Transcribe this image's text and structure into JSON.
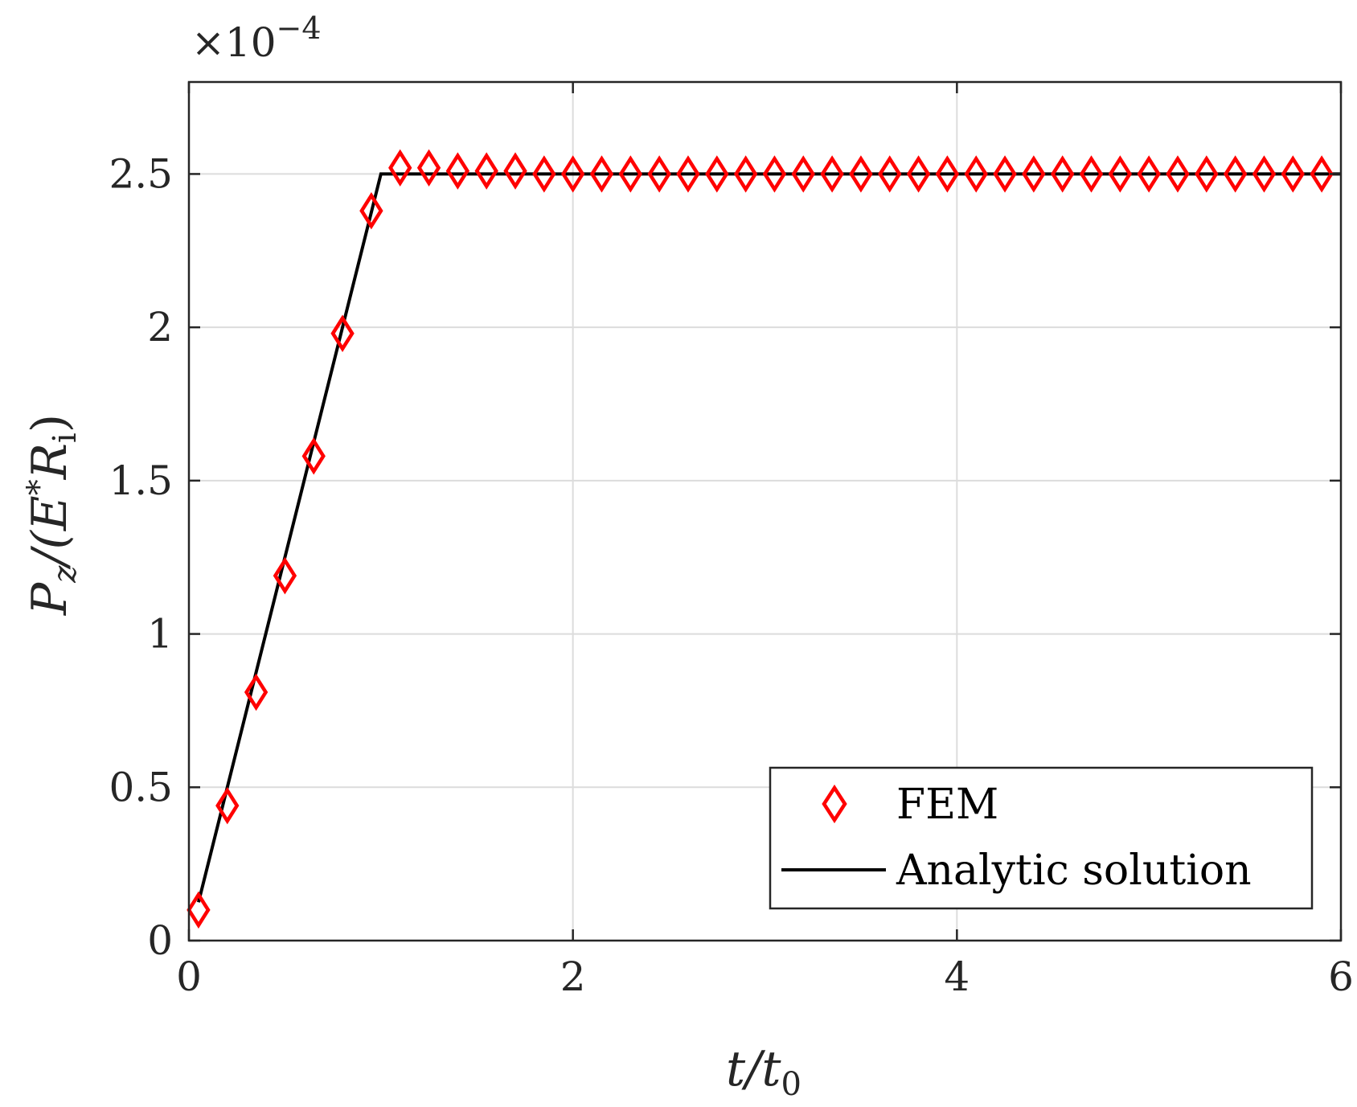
{
  "chart_data": {
    "type": "line",
    "xlabel": "t/t0",
    "xlabel_parts": {
      "main": "t/t",
      "sub": "0"
    },
    "ylabel_parts": {
      "p": "P",
      "z": "z",
      "mid": "/(E",
      "star": "*",
      "r": "R",
      "i": "i",
      "close": ")"
    },
    "exponent_label": {
      "base": "×10",
      "power": "−4"
    },
    "xlim": [
      0,
      6
    ],
    "ylim": [
      0,
      2.8
    ],
    "x_ticks": [
      0,
      2,
      4,
      6
    ],
    "x_tick_labels": [
      "0",
      "2",
      "4",
      "6"
    ],
    "y_ticks": [
      0,
      0.5,
      1,
      1.5,
      2,
      2.5
    ],
    "y_tick_labels": [
      "0",
      "0.5",
      "1",
      "1.5",
      "2",
      "2.5"
    ],
    "grid": true,
    "legend_position": "bottom-right",
    "series": [
      {
        "name": "FEM",
        "style": "marker-diamond",
        "color": "#ff0000",
        "x": [
          0.05,
          0.2,
          0.35,
          0.5,
          0.65,
          0.8,
          0.95,
          1.1,
          1.25,
          1.4,
          1.55,
          1.7,
          1.85,
          2.0,
          2.15,
          2.3,
          2.45,
          2.6,
          2.75,
          2.9,
          3.05,
          3.2,
          3.35,
          3.5,
          3.65,
          3.8,
          3.95,
          4.1,
          4.25,
          4.4,
          4.55,
          4.7,
          4.85,
          5.0,
          5.15,
          5.3,
          5.45,
          5.6,
          5.75,
          5.9
        ],
        "y": [
          0.1,
          0.44,
          0.81,
          1.19,
          1.58,
          1.98,
          2.38,
          2.52,
          2.52,
          2.51,
          2.51,
          2.51,
          2.5,
          2.5,
          2.5,
          2.5,
          2.5,
          2.5,
          2.5,
          2.5,
          2.5,
          2.5,
          2.5,
          2.5,
          2.5,
          2.5,
          2.5,
          2.5,
          2.5,
          2.5,
          2.5,
          2.5,
          2.5,
          2.5,
          2.5,
          2.5,
          2.5,
          2.5,
          2.5,
          2.5
        ]
      },
      {
        "name": "Analytic solution",
        "style": "line",
        "color": "#000000",
        "x": [
          0.05,
          1.0,
          6.0
        ],
        "y": [
          0.125,
          2.5,
          2.5
        ]
      }
    ]
  }
}
